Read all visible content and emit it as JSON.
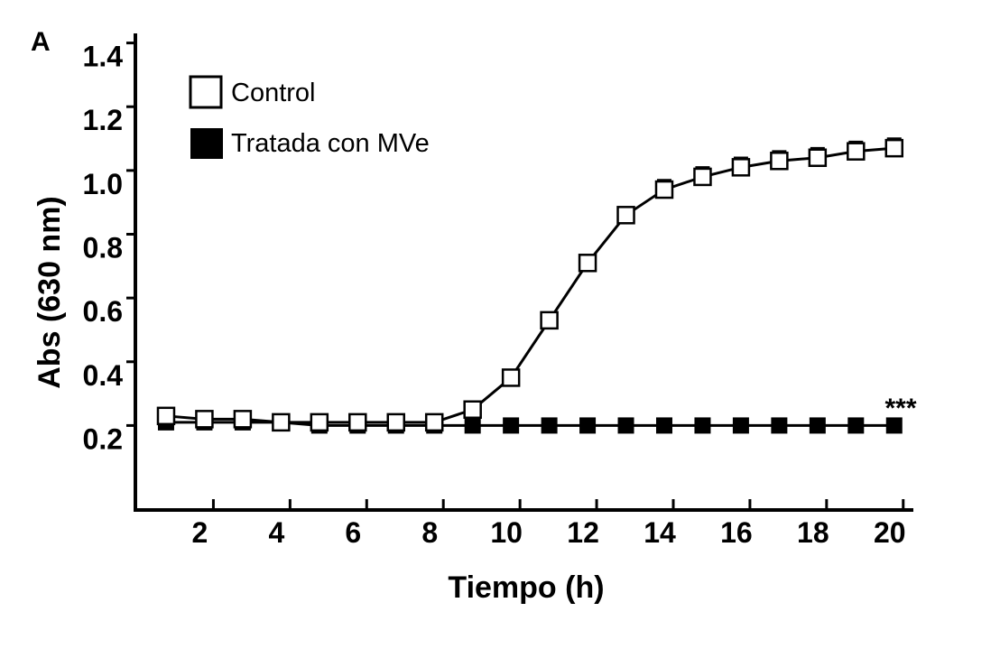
{
  "chart_data": {
    "type": "line",
    "panel_label": "A",
    "xlabel": "Tiempo (h)",
    "ylabel": "Abs (630 nm)",
    "xlim": [
      0.2,
      20.5
    ],
    "ylim": [
      -0.065,
      1.43
    ],
    "xticks": [
      2,
      4,
      6,
      8,
      10,
      12,
      14,
      16,
      18,
      20
    ],
    "yticks": [
      0.2,
      0.4,
      0.6,
      0.8,
      1.0,
      1.2,
      1.4
    ],
    "ytick_labels": [
      "0.2",
      "0.4",
      "0.6",
      "0.8",
      "1.0",
      "1.2",
      "1.4"
    ],
    "grid": false,
    "legend_position": "top-left",
    "annotation": "***",
    "x": [
      1,
      2,
      3,
      4,
      5,
      6,
      7,
      8,
      9,
      10,
      11,
      12,
      13,
      14,
      15,
      16,
      17,
      18,
      19,
      20
    ],
    "series": [
      {
        "name": "Control",
        "marker": "open-square",
        "color": "#000000",
        "values": [
          0.23,
          0.22,
          0.22,
          0.21,
          0.21,
          0.21,
          0.21,
          0.21,
          0.25,
          0.35,
          0.53,
          0.71,
          0.86,
          0.94,
          0.98,
          1.01,
          1.03,
          1.04,
          1.06,
          1.07
        ],
        "errors": [
          0,
          0,
          0,
          0,
          0,
          0,
          0,
          0,
          0,
          0,
          0,
          0.02,
          0.02,
          0.03,
          0.03,
          0.03,
          0.03,
          0.03,
          0.03,
          0.03
        ]
      },
      {
        "name": "Tratada con MVe",
        "marker": "filled-square",
        "color": "#000000",
        "values": [
          0.21,
          0.21,
          0.21,
          0.21,
          0.2,
          0.2,
          0.2,
          0.2,
          0.2,
          0.2,
          0.2,
          0.2,
          0.2,
          0.2,
          0.2,
          0.2,
          0.2,
          0.2,
          0.2,
          0.2
        ],
        "errors": [
          0,
          0,
          0,
          0,
          0,
          0,
          0,
          0,
          0,
          0,
          0,
          0,
          0,
          0,
          0,
          0,
          0,
          0,
          0,
          0
        ]
      }
    ]
  }
}
